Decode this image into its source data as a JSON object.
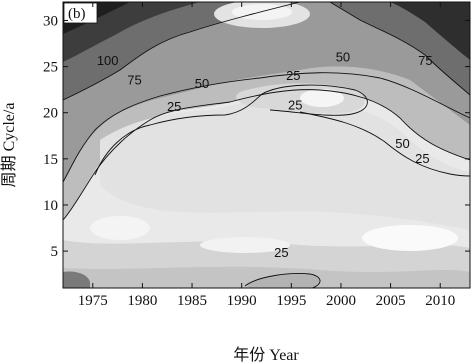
{
  "chart_data": {
    "type": "heatmap",
    "panel_label": "(b)",
    "xlabel": "年份 Year",
    "ylabel": "周期 Cycle/a",
    "xlim": [
      1972,
      2013
    ],
    "ylim": [
      1,
      32
    ],
    "x_ticks": [
      1975,
      1980,
      1985,
      1990,
      1995,
      2000,
      2005,
      2010
    ],
    "y_ticks": [
      5,
      10,
      15,
      20,
      25,
      30
    ],
    "contour_levels": [
      25,
      50,
      75,
      100
    ],
    "contour_labels": [
      {
        "text": "100",
        "x": 1976.5,
        "y": 25.6
      },
      {
        "text": "75",
        "x": 1979.2,
        "y": 23.5
      },
      {
        "text": "50",
        "x": 1986.0,
        "y": 23.1
      },
      {
        "text": "25",
        "x": 1983.2,
        "y": 20.6
      },
      {
        "text": "25",
        "x": 1995.2,
        "y": 24.0
      },
      {
        "text": "50",
        "x": 2000.2,
        "y": 26.0
      },
      {
        "text": "75",
        "x": 2008.5,
        "y": 25.6
      },
      {
        "text": "25",
        "x": 1995.4,
        "y": 20.8
      },
      {
        "text": "50",
        "x": 2006.2,
        "y": 16.6
      },
      {
        "text": "25",
        "x": 2008.2,
        "y": 15.0
      },
      {
        "text": "25",
        "x": 1994.0,
        "y": 4.8
      }
    ],
    "colormap": "grayscale (light = low, dark = high)"
  }
}
